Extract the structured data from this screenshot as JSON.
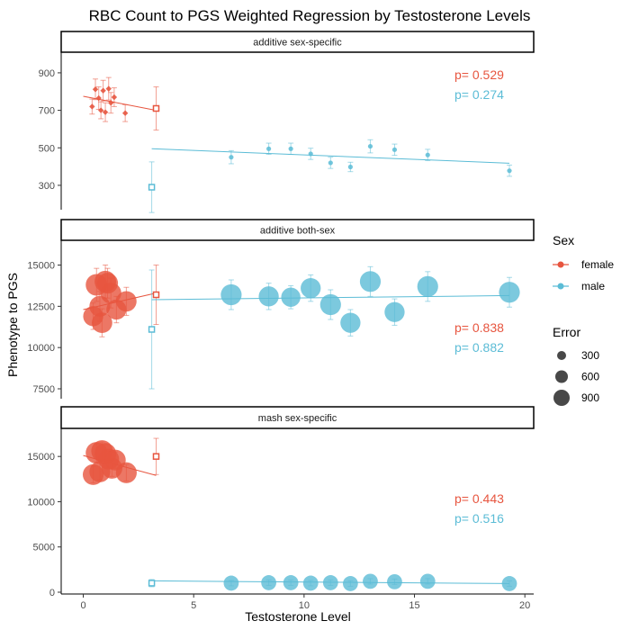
{
  "chart_data": {
    "type": "scatter",
    "title": "RBC Count to PGS Weighted Regression by Testosterone Levels",
    "xlabel": "Testosterone Level",
    "ylabel": "Phenotype to PGS",
    "xlim": [
      -1,
      20.4
    ],
    "x_ticks": [
      0,
      5,
      10,
      15,
      20
    ],
    "colors": {
      "female": "#E7553F",
      "male": "#5BBCD6"
    },
    "legend": {
      "sex_title": "Sex",
      "sex_items": [
        {
          "key": "female",
          "label": "female"
        },
        {
          "key": "male",
          "label": "male"
        }
      ],
      "error_title": "Error",
      "error_items": [
        300,
        600,
        900
      ]
    },
    "panels": [
      {
        "strip": "additive sex-specific",
        "ylim": [
          170,
          1010
        ],
        "y_ticks": [
          300,
          500,
          700,
          900
        ],
        "p_values": {
          "female": "p= 0.529",
          "male": "p= 0.274"
        },
        "lines": {
          "female": [
            [
              0,
              775
            ],
            [
              3.3,
              700
            ]
          ],
          "male": [
            [
              3.1,
              495
            ],
            [
              19.3,
              418
            ]
          ]
        },
        "points": {
          "female": [
            {
              "x": 0.4,
              "y": 720,
              "err": 40
            },
            {
              "x": 0.55,
              "y": 812,
              "err": 55
            },
            {
              "x": 0.7,
              "y": 765,
              "err": 60
            },
            {
              "x": 0.8,
              "y": 700,
              "err": 45
            },
            {
              "x": 0.9,
              "y": 805,
              "err": 55
            },
            {
              "x": 1.0,
              "y": 690,
              "err": 50
            },
            {
              "x": 1.15,
              "y": 815,
              "err": 60
            },
            {
              "x": 1.25,
              "y": 740,
              "err": 55
            },
            {
              "x": 1.4,
              "y": 770,
              "err": 50
            },
            {
              "x": 1.9,
              "y": 685,
              "err": 45
            },
            {
              "x": 3.3,
              "y": 710,
              "err": 115,
              "hollow": true
            }
          ],
          "male": [
            {
              "x": 3.1,
              "y": 290,
              "err": 135,
              "hollow": true
            },
            {
              "x": 6.7,
              "y": 450,
              "err": 35
            },
            {
              "x": 8.4,
              "y": 495,
              "err": 30
            },
            {
              "x": 9.4,
              "y": 495,
              "err": 30
            },
            {
              "x": 10.3,
              "y": 468,
              "err": 30
            },
            {
              "x": 11.2,
              "y": 420,
              "err": 30
            },
            {
              "x": 12.1,
              "y": 398,
              "err": 25
            },
            {
              "x": 13.0,
              "y": 508,
              "err": 35
            },
            {
              "x": 14.1,
              "y": 490,
              "err": 30
            },
            {
              "x": 15.6,
              "y": 462,
              "err": 30
            },
            {
              "x": 19.3,
              "y": 378,
              "err": 30
            }
          ]
        }
      },
      {
        "strip": "additive both-sex",
        "ylim": [
          6900,
          16500
        ],
        "y_ticks": [
          7500,
          10000,
          12500,
          15000
        ],
        "p_values": {
          "female": "p= 0.838",
          "male": "p= 0.882"
        },
        "lines": {
          "female": [
            [
              0,
              12300
            ],
            [
              3.3,
              13300
            ]
          ],
          "male": [
            [
              3.1,
              12900
            ],
            [
              19.3,
              13150
            ]
          ]
        },
        "points": {
          "female": [
            {
              "x": 0.45,
              "y": 11900,
              "err": 800
            },
            {
              "x": 0.6,
              "y": 13800,
              "err": 1000
            },
            {
              "x": 0.75,
              "y": 12500,
              "err": 900
            },
            {
              "x": 0.85,
              "y": 11500,
              "err": 850
            },
            {
              "x": 1.0,
              "y": 14000,
              "err": 1000
            },
            {
              "x": 1.1,
              "y": 13900,
              "err": 900
            },
            {
              "x": 1.25,
              "y": 13300,
              "err": 900
            },
            {
              "x": 1.5,
              "y": 12300,
              "err": 800
            },
            {
              "x": 1.95,
              "y": 12800,
              "err": 850
            },
            {
              "x": 3.3,
              "y": 13200,
              "err": 1800,
              "hollow": true
            }
          ],
          "male": [
            {
              "x": 3.1,
              "y": 11100,
              "err": 3600,
              "hollow": true
            },
            {
              "x": 6.7,
              "y": 13200,
              "err": 900
            },
            {
              "x": 8.4,
              "y": 13100,
              "err": 800
            },
            {
              "x": 9.4,
              "y": 13050,
              "err": 700
            },
            {
              "x": 10.3,
              "y": 13600,
              "err": 800
            },
            {
              "x": 11.2,
              "y": 12600,
              "err": 900
            },
            {
              "x": 12.1,
              "y": 11500,
              "err": 800
            },
            {
              "x": 13.0,
              "y": 14000,
              "err": 900
            },
            {
              "x": 14.1,
              "y": 12150,
              "err": 800
            },
            {
              "x": 15.6,
              "y": 13700,
              "err": 900
            },
            {
              "x": 19.3,
              "y": 13350,
              "err": 900
            }
          ]
        }
      },
      {
        "strip": "mash sex-specific",
        "ylim": [
          -200,
          18100
        ],
        "y_ticks": [
          0,
          5000,
          10000,
          15000
        ],
        "p_values": {
          "female": "p= 0.443",
          "male": "p= 0.516"
        },
        "lines": {
          "female": [
            [
              0,
              15100
            ],
            [
              3.3,
              12900
            ]
          ],
          "male": [
            [
              3.1,
              1250
            ],
            [
              19.3,
              950
            ]
          ]
        },
        "points": {
          "female": [
            {
              "x": 0.45,
              "y": 13000,
              "err": 900
            },
            {
              "x": 0.6,
              "y": 15400,
              "err": 1000
            },
            {
              "x": 0.75,
              "y": 13300,
              "err": 900
            },
            {
              "x": 0.85,
              "y": 15600,
              "err": 1000
            },
            {
              "x": 1.0,
              "y": 15300,
              "err": 1000
            },
            {
              "x": 1.15,
              "y": 14700,
              "err": 900
            },
            {
              "x": 1.3,
              "y": 13700,
              "err": 900
            },
            {
              "x": 1.45,
              "y": 14600,
              "err": 900
            },
            {
              "x": 1.95,
              "y": 13200,
              "err": 900
            },
            {
              "x": 3.3,
              "y": 15000,
              "err": 2000,
              "hollow": true
            }
          ],
          "male": [
            {
              "x": 3.1,
              "y": 1000,
              "err": 400,
              "hollow": true
            },
            {
              "x": 6.7,
              "y": 1000,
              "err": 300
            },
            {
              "x": 8.4,
              "y": 1050,
              "err": 300
            },
            {
              "x": 9.4,
              "y": 1050,
              "err": 300
            },
            {
              "x": 10.3,
              "y": 1000,
              "err": 300
            },
            {
              "x": 11.2,
              "y": 1050,
              "err": 300
            },
            {
              "x": 12.1,
              "y": 950,
              "err": 300
            },
            {
              "x": 13.0,
              "y": 1200,
              "err": 300
            },
            {
              "x": 14.1,
              "y": 1150,
              "err": 300
            },
            {
              "x": 15.6,
              "y": 1200,
              "err": 300
            },
            {
              "x": 19.3,
              "y": 950,
              "err": 300
            }
          ]
        }
      }
    ]
  }
}
